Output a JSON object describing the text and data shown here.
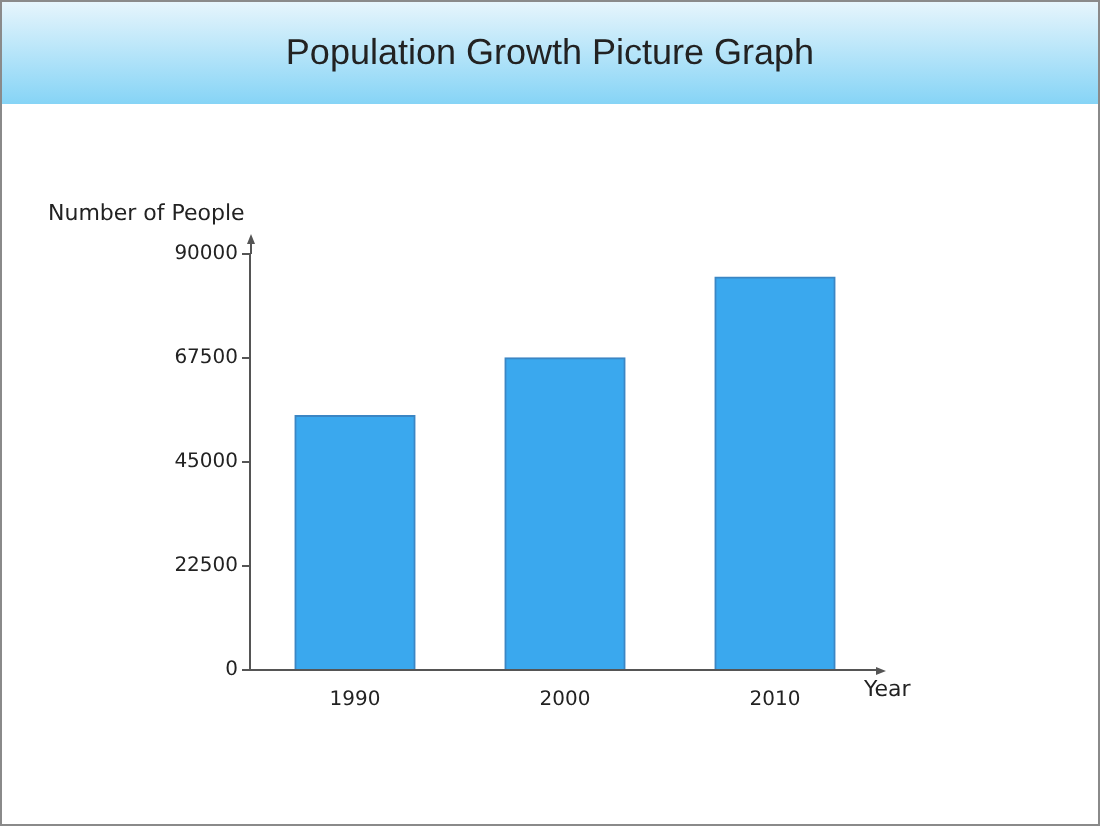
{
  "chart_data": {
    "type": "bar",
    "title": "Population Growth Picture Graph",
    "xlabel": "Year",
    "ylabel": "Number of People",
    "categories": [
      "1990",
      "2000",
      "2010"
    ],
    "values": [
      55000,
      67500,
      85000
    ],
    "color": "#3aa8ee",
    "ylim": [
      0,
      90000
    ],
    "yticks": [
      0,
      22500,
      45000,
      67500,
      90000
    ],
    "grid": false,
    "legend": false
  }
}
